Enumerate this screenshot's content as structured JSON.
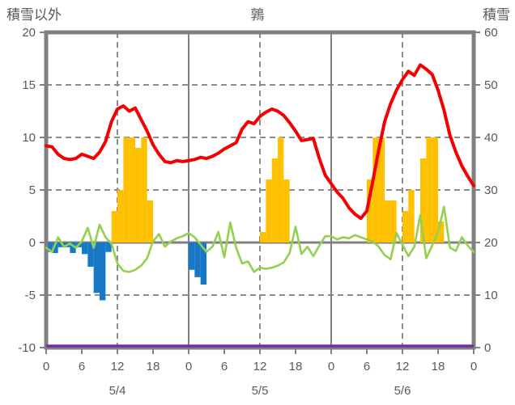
{
  "header": {
    "left_axis_title": "積雪以外",
    "chart_title": "鶉",
    "right_axis_title": "積雪"
  },
  "chart_data": {
    "type": "bar+line hourly weather chart",
    "title": "鶉",
    "x": {
      "days": [
        "5/4",
        "5/5",
        "5/6"
      ],
      "hours_per_day": 24,
      "tick_interval_hours": 6,
      "tick_labels_per_day": [
        "0",
        "6",
        "12",
        "18"
      ],
      "final_tick_label": "0"
    },
    "left_axis": {
      "title": "積雪以外",
      "min": -10,
      "max": 20,
      "ticks": [
        20,
        15,
        10,
        5,
        0,
        -5,
        -10
      ]
    },
    "right_axis": {
      "title": "積雪",
      "min": 0,
      "max": 60,
      "ticks": [
        60,
        50,
        40,
        30,
        20,
        10,
        0
      ]
    },
    "grid": {
      "h_dashed_at": [
        15,
        10,
        5,
        -5
      ],
      "zero_line": 0,
      "v_dashed_at_hours": [
        12,
        36,
        60
      ],
      "v_solid_at_hours": [
        24,
        48
      ]
    },
    "series": {
      "red_line": {
        "type": "line",
        "axis": "left",
        "color": "#f40000",
        "hourly": [
          9.2,
          9.1,
          8.4,
          8.0,
          7.9,
          8.0,
          8.4,
          8.2,
          8.0,
          8.6,
          9.6,
          11.5,
          12.7,
          13.0,
          12.5,
          12.8,
          11.7,
          10.6,
          9.3,
          8.4,
          7.7,
          7.6,
          7.8,
          7.7,
          7.8,
          7.9,
          8.1,
          8.0,
          8.2,
          8.5,
          8.9,
          9.2,
          9.5,
          10.8,
          11.5,
          11.3,
          12.0,
          12.4,
          12.7,
          12.5,
          12.1,
          11.4,
          10.6,
          9.7,
          9.8,
          9.9,
          8.0,
          6.4,
          5.6,
          4.8,
          4.2,
          3.3,
          2.7,
          2.3,
          3.0,
          5.8,
          8.8,
          11.5,
          13.2,
          14.5,
          15.5,
          16.3,
          15.9,
          16.9,
          16.5,
          16.0,
          14.5,
          12.6,
          10.2,
          8.6,
          7.3,
          6.3,
          5.4
        ]
      },
      "green_line": {
        "type": "line",
        "axis": "left",
        "color": "#92d050",
        "hourly": [
          -0.5,
          -0.9,
          0.5,
          -0.4,
          -0.1,
          -0.5,
          0.1,
          1.4,
          -0.5,
          1.7,
          0.5,
          -0.1,
          -2.0,
          -2.7,
          -2.8,
          -2.6,
          -2.2,
          -1.5,
          0.1,
          0.8,
          -0.4,
          0.1,
          0.4,
          0.6,
          0.9,
          0.5,
          -0.2,
          -0.9,
          -0.4,
          1.0,
          -1.4,
          1.9,
          -0.5,
          -2.0,
          -1.8,
          -2.8,
          -2.4,
          -2.5,
          -2.4,
          -2.2,
          -1.9,
          -1.0,
          1.5,
          -1.1,
          -0.4,
          -1.3,
          -0.3,
          0.6,
          0.6,
          0.3,
          0.5,
          0.4,
          0.7,
          0.5,
          0.3,
          0.1,
          -0.4,
          -1.2,
          -1.6,
          0.9,
          -0.2,
          -1.3,
          -0.4,
          2.6,
          -1.5,
          -0.3,
          1.0,
          3.4,
          -0.5,
          -0.8,
          0.5,
          -0.3,
          -0.9
        ]
      },
      "purple_line": {
        "type": "line",
        "axis": "right",
        "color": "#7030a0",
        "constant_value": 0
      },
      "yellow_bars": {
        "type": "bar",
        "axis": "left",
        "color": "#ffc000",
        "hourly": [
          0,
          0,
          0,
          0,
          0,
          0,
          0,
          0,
          0,
          0,
          0,
          3,
          5,
          10,
          10,
          9,
          10,
          4,
          0,
          0,
          0,
          0,
          0,
          0,
          0,
          0,
          0,
          0,
          0,
          0,
          0,
          0,
          0,
          0,
          0,
          0,
          1,
          6,
          8,
          10,
          6,
          0,
          0,
          0,
          0,
          0,
          0,
          0,
          0,
          0,
          0,
          0,
          0,
          0,
          6,
          10,
          10,
          4,
          4,
          0,
          3,
          5,
          0,
          8,
          10,
          10,
          2,
          0,
          0,
          0,
          0,
          0
        ]
      },
      "blue_bars": {
        "type": "bar",
        "axis": "left",
        "color": "#1878c8",
        "hourly": [
          -0.9,
          -1.0,
          -0.45,
          -0.45,
          -1.0,
          -0.45,
          -1.1,
          -2.3,
          -4.8,
          -5.5,
          -0.9,
          0,
          0,
          0,
          0,
          0,
          0,
          0,
          0,
          0,
          0,
          0,
          0,
          0,
          -2.6,
          -3.3,
          -4.0,
          0,
          0,
          0,
          0,
          0,
          0,
          0,
          0,
          0,
          0,
          0,
          0,
          0,
          0,
          0,
          0,
          0,
          0,
          0,
          0,
          0,
          0,
          0,
          0,
          0,
          0,
          0,
          0,
          0,
          0,
          0,
          0,
          0,
          0,
          0,
          0,
          0,
          0,
          0,
          0,
          0,
          0,
          0,
          0,
          0
        ]
      }
    }
  },
  "colors": {
    "axis": "#808080",
    "grid_dashed": "#8c8c8c",
    "text": "#595959",
    "background": "#ffffff"
  }
}
